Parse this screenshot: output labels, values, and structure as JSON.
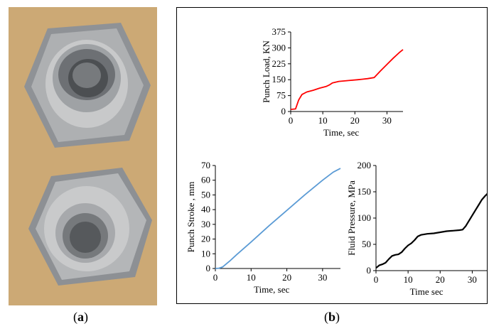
{
  "captions": {
    "a": "a",
    "b": "b"
  },
  "photo": {
    "subject": "two hydroformed hexagonal nut-shaped parts",
    "colors": {
      "background": "#c9a56f",
      "metal": "#9ea1a4"
    }
  },
  "chart_data": [
    {
      "type": "line",
      "xlabel": "Time, sec",
      "ylabel": "Punch Load, KN",
      "xlim": [
        0,
        35
      ],
      "ylim": [
        0,
        375
      ],
      "xticks": [
        0,
        10,
        20,
        30
      ],
      "yticks": [
        0,
        75,
        150,
        225,
        300,
        375
      ],
      "grid": false,
      "color": "#ff0000",
      "series": [
        {
          "x": [
            0,
            1.5,
            2.5,
            3.5,
            5,
            7,
            9,
            11,
            12,
            13,
            15,
            18,
            21,
            24,
            26,
            28,
            30,
            32,
            34,
            35
          ],
          "y": [
            10,
            12,
            55,
            80,
            92,
            100,
            110,
            118,
            125,
            135,
            142,
            146,
            150,
            155,
            160,
            192,
            222,
            252,
            280,
            292
          ]
        }
      ]
    },
    {
      "type": "line",
      "xlabel": "Time, sec",
      "ylabel": "Punch Stroke , mm",
      "xlim": [
        0,
        35
      ],
      "ylim": [
        0,
        70
      ],
      "xticks": [
        0,
        10,
        20,
        30
      ],
      "yticks": [
        0,
        10,
        20,
        30,
        40,
        50,
        60,
        70
      ],
      "grid": false,
      "color": "#5b9bd5",
      "series": [
        {
          "x": [
            0,
            1,
            2,
            4,
            6,
            10,
            15,
            20,
            25,
            30,
            33,
            35
          ],
          "y": [
            0,
            0.2,
            1,
            5,
            9.5,
            18,
            29,
            39.5,
            50,
            60,
            65.5,
            68
          ]
        }
      ]
    },
    {
      "type": "line",
      "xlabel": "Time sec",
      "ylabel": "Fluid Pressure, MPa",
      "xlim": [
        0,
        35
      ],
      "ylim": [
        0,
        200
      ],
      "xticks": [
        0,
        10,
        20,
        30
      ],
      "yticks": [
        0,
        50,
        100,
        150,
        200
      ],
      "grid": false,
      "color": "#000000",
      "series": [
        {
          "x": [
            0,
            1,
            2,
            3,
            4,
            5,
            6,
            7,
            8,
            9,
            10,
            11,
            12,
            13,
            14,
            16,
            18,
            20,
            22,
            24,
            26,
            27,
            28,
            29,
            30,
            31,
            32,
            33,
            34,
            35
          ],
          "y": [
            5,
            10,
            12,
            15,
            22,
            28,
            30,
            31,
            35,
            42,
            48,
            52,
            58,
            65,
            68,
            70,
            71,
            73,
            75,
            76,
            77,
            78,
            85,
            95,
            105,
            115,
            125,
            135,
            142,
            148
          ]
        }
      ]
    }
  ]
}
